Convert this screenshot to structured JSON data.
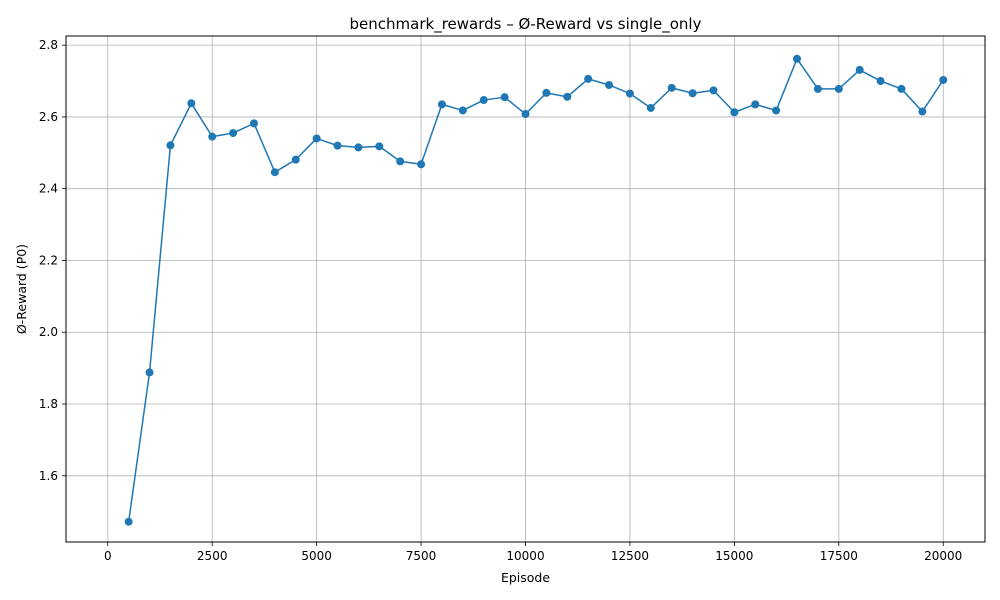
{
  "chart_data": {
    "type": "line",
    "title": "benchmark_rewards – Ø-Reward vs single_only",
    "xlabel": "Episode",
    "ylabel": "Ø-Reward (P0)",
    "xlim": [
      -1000,
      21000
    ],
    "ylim": [
      1.4155,
      2.8255
    ],
    "xticks": [
      0,
      2500,
      5000,
      7500,
      10000,
      12500,
      15000,
      17500,
      20000
    ],
    "yticks": [
      1.6,
      1.8,
      2.0,
      2.2,
      2.4,
      2.6,
      2.8
    ],
    "xtick_labels": [
      "0",
      "2500",
      "5000",
      "7500",
      "10000",
      "12500",
      "15000",
      "17500",
      "20000"
    ],
    "ytick_labels": [
      "1.6",
      "1.8",
      "2.0",
      "2.2",
      "2.4",
      "2.6",
      "2.8"
    ],
    "grid": true,
    "marker": "circle",
    "color": "#1f77b4",
    "series": [
      {
        "x": [
          500,
          1000,
          1500,
          2000,
          2500,
          3000,
          3500,
          4000,
          4500,
          5000,
          5500,
          6000,
          6500,
          7000,
          7500,
          8000,
          8500,
          9000,
          9500,
          10000,
          10500,
          11000,
          11500,
          12000,
          12500,
          13000,
          13500,
          14000,
          14500,
          15000,
          15500,
          16000,
          16500,
          17000,
          17500,
          18000,
          18500,
          19000,
          19500,
          20000
        ],
        "values": [
          1.472,
          1.888,
          2.521,
          2.638,
          2.545,
          2.555,
          2.582,
          2.446,
          2.481,
          2.54,
          2.52,
          2.515,
          2.518,
          2.476,
          2.468,
          2.635,
          2.618,
          2.647,
          2.655,
          2.608,
          2.667,
          2.656,
          2.706,
          2.689,
          2.665,
          2.625,
          2.681,
          2.666,
          2.674,
          2.613,
          2.635,
          2.618,
          2.762,
          2.678,
          2.678,
          2.731,
          2.7,
          2.678,
          2.615,
          2.703
        ]
      }
    ]
  }
}
